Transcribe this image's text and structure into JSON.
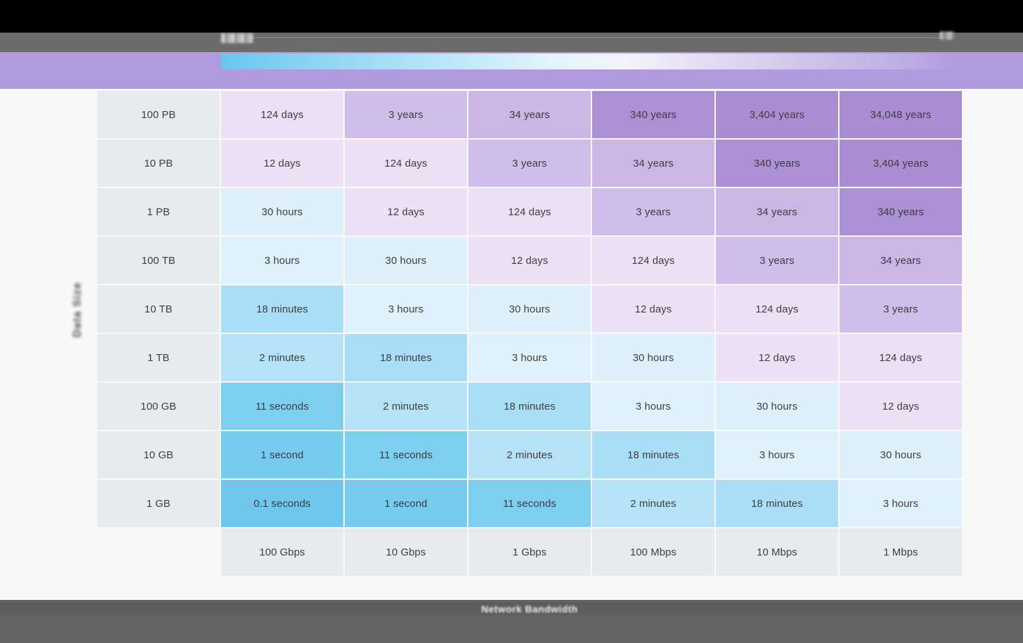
{
  "window": {
    "top_bar_color": "#000000",
    "toolbar_color": "#6b6b6b",
    "banner_color": "#b29ade",
    "footer_color": "#656566",
    "page_background": "#f9f9fa"
  },
  "legend": {
    "gradient_colors": [
      "#68c7ee",
      "#93d6f3",
      "#b9e6f9",
      "#e2f4fc",
      "#f4f4fb",
      "#e6def3",
      "#d0c3ea",
      "#bfaee4",
      "#b29ade"
    ]
  },
  "axes": {
    "y_label": "Data Size",
    "x_label": "Network Bandwidth"
  },
  "chart_data": {
    "type": "heatmap",
    "xlabel": "Network Bandwidth",
    "ylabel": "Data Size",
    "columns": [
      "100 Gbps",
      "10 Gbps",
      "1 Gbps",
      "100 Mbps",
      "10 Mbps",
      "1 Mbps"
    ],
    "rows": [
      "100 PB",
      "10 PB",
      "1 PB",
      "100 TB",
      "10 TB",
      "1 TB",
      "100 GB",
      "10 GB",
      "1 GB"
    ],
    "values": [
      [
        "124 days",
        "3 years",
        "34 years",
        "340 years",
        "3,404 years",
        "34,048 years"
      ],
      [
        "12 days",
        "124 days",
        "3 years",
        "34 years",
        "340 years",
        "3,404 years"
      ],
      [
        "30 hours",
        "12 days",
        "124 days",
        "3 years",
        "34 years",
        "340 years"
      ],
      [
        "3 hours",
        "30 hours",
        "12 days",
        "124 days",
        "3 years",
        "34 years"
      ],
      [
        "18 minutes",
        "3 hours",
        "30 hours",
        "12 days",
        "124 days",
        "3 years"
      ],
      [
        "2 minutes",
        "18 minutes",
        "3 hours",
        "30 hours",
        "12 days",
        "124 days"
      ],
      [
        "11 seconds",
        "2 minutes",
        "18 minutes",
        "3 hours",
        "30 hours",
        "12 days"
      ],
      [
        "1 second",
        "11 seconds",
        "2 minutes",
        "18 minutes",
        "3 hours",
        "30 hours"
      ],
      [
        "0.1 seconds",
        "1 second",
        "11 seconds",
        "2 minutes",
        "18 minutes",
        "3 hours"
      ]
    ],
    "color_scale": {
      "0.1 seconds": "#6fc7ee",
      "1 second": "#76cbef",
      "11 seconds": "#7ecef0",
      "2 minutes": "#b6e2f8",
      "18 minutes": "#aadef6",
      "3 hours": "#dff2fc",
      "30 hours": "#def1fb",
      "12 days": "#ede2f5",
      "124 days": "#ebe0f4",
      "3 years": "#d0bdea",
      "34 years": "#cbb6e6",
      "340 years": "#ab90d6",
      "3,404 years": "#a98ed4",
      "34,048 years": "#a98ed4"
    },
    "header_bg": "#e8ebed",
    "cell_text_color": "#3d3d3d",
    "legend_position": "top",
    "grid": false
  }
}
